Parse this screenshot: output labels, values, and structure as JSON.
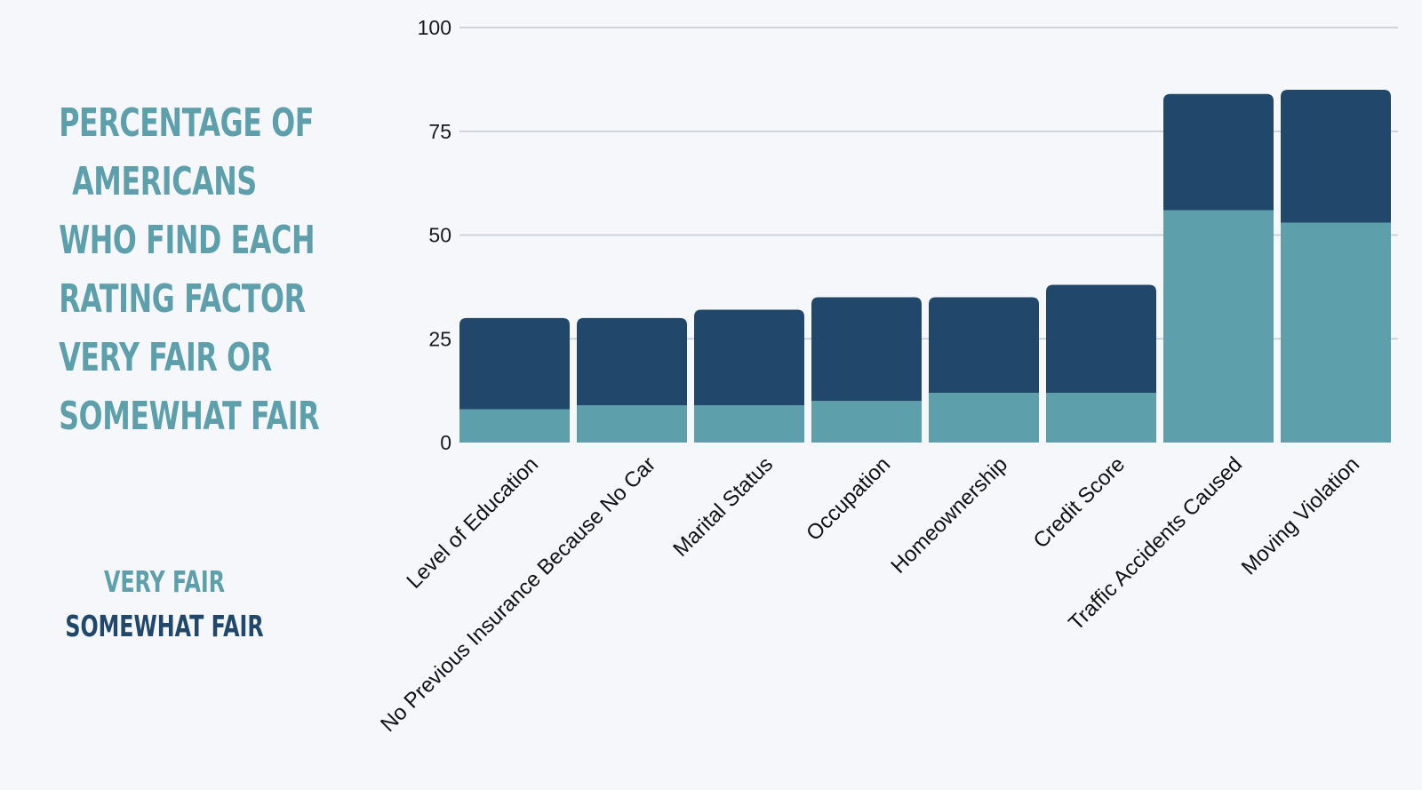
{
  "title_lines": [
    "PERCENTAGE OF",
    "AMERICANS",
    "WHO FIND EACH",
    "RATING FACTOR",
    "VERY FAIR OR",
    "SOMEWHAT FAIR"
  ],
  "legend": [
    {
      "label": "VERY FAIR",
      "color": "#5e9fac"
    },
    {
      "label": "SOMEWHAT FAIR",
      "color": "#21486b"
    }
  ],
  "chart_data": {
    "type": "bar",
    "stacked": true,
    "categories": [
      "Level of Education",
      "No Previous Insurance Because No Car",
      "Marital Status",
      "Occupation",
      "Homeownership",
      "Credit Score",
      "Traffic Accidents Caused",
      "Moving Violation"
    ],
    "series": [
      {
        "name": "VERY FAIR",
        "color": "#5e9fac",
        "values": [
          8,
          9,
          9,
          10,
          12,
          12,
          56,
          53
        ]
      },
      {
        "name": "SOMEWHAT FAIR",
        "color": "#21486b",
        "values": [
          22,
          21,
          23,
          25,
          23,
          26,
          28,
          32
        ]
      }
    ],
    "ylim": [
      0,
      100
    ],
    "yticks": [
      0,
      25,
      50,
      75,
      100
    ],
    "grid": true,
    "legend_position": "left"
  }
}
